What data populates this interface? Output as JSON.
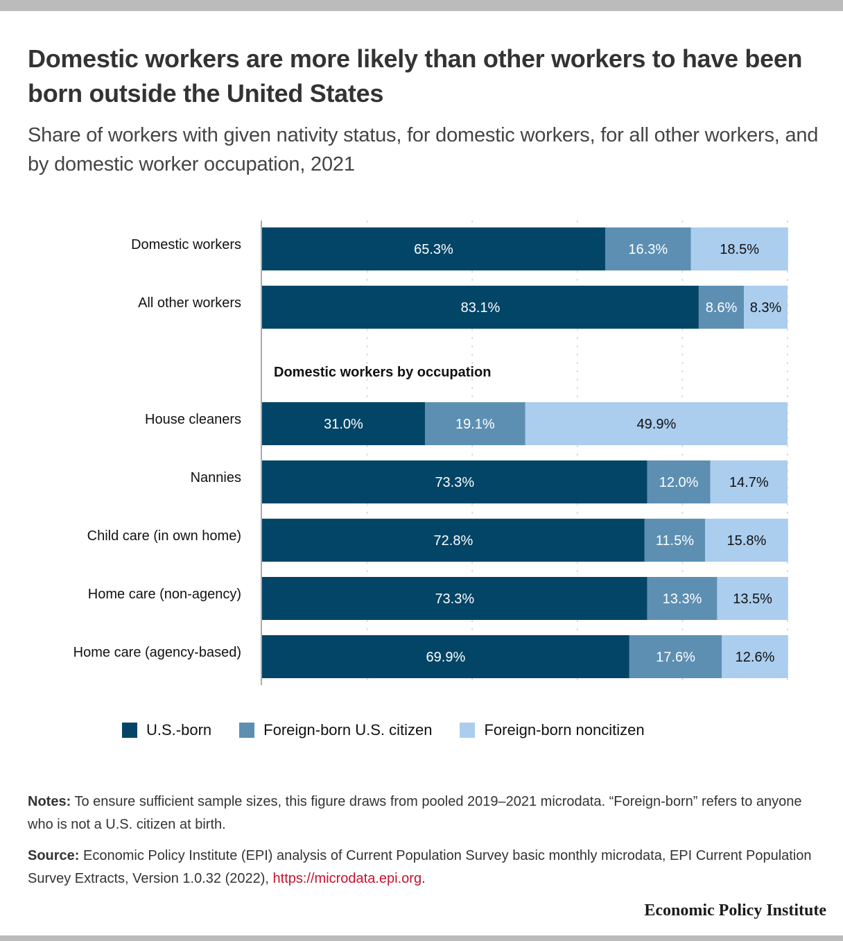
{
  "title": "Domestic workers are more likely than other workers to have been born outside the United States",
  "subtitle": "Share of workers with given nativity status, for domestic workers, for all other workers, and by domestic worker occupation, 2021",
  "chart_data": {
    "type": "bar",
    "orientation": "horizontal",
    "stacked": true,
    "title": "Domestic workers are more likely than other workers to have been born outside the United States",
    "subtitle": "Share of workers with given nativity status, for domestic workers, for all other workers, and by domestic worker occupation, 2021",
    "xlabel": "",
    "ylabel": "",
    "xlim": [
      0,
      100
    ],
    "grid": true,
    "legend_position": "bottom",
    "section_label": "Domestic workers by occupation",
    "categories": [
      "Domestic workers",
      "All other workers",
      "House cleaners",
      "Nannies",
      "Child care (in own home)",
      "Home care (non-agency)",
      "Home care (agency-based)"
    ],
    "section_break_before": 2,
    "series": [
      {
        "name": "U.S.-born",
        "color": "#034567",
        "label_color": "#ffffff",
        "values": [
          65.3,
          83.1,
          31.0,
          73.3,
          72.8,
          73.3,
          69.9
        ]
      },
      {
        "name": "Foreign-born U.S. citizen",
        "color": "#5d8fb3",
        "label_color": "#ffffff",
        "values": [
          16.3,
          8.6,
          19.1,
          12.0,
          11.5,
          13.3,
          17.6
        ]
      },
      {
        "name": "Foreign-born noncitizen",
        "color": "#abcdee",
        "label_color": "#111111",
        "values": [
          18.5,
          8.3,
          49.9,
          14.7,
          15.8,
          13.5,
          12.6
        ]
      }
    ]
  },
  "notes": {
    "label": "Notes:",
    "text": "To ensure sufficient sample sizes, this figure draws from pooled 2019–2021 microdata. “Foreign-born” refers to anyone who is not a U.S. citizen at birth."
  },
  "source": {
    "label": "Source:",
    "text": "Economic Policy Institute (EPI) analysis of Current Population Survey basic monthly microdata, EPI Current Population Survey Extracts, Version 1.0.32 (2022), ",
    "link": "https://microdata.epi.org",
    "end": "."
  },
  "brand": "Economic Policy Institute"
}
